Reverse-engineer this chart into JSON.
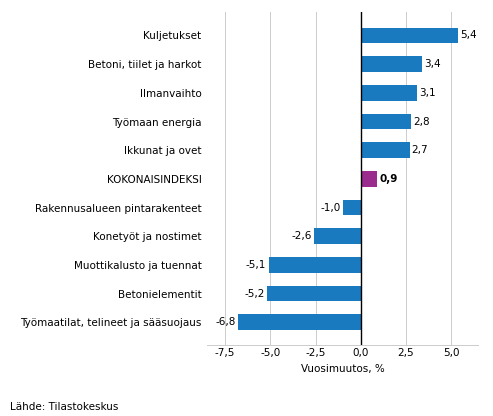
{
  "categories": [
    "Työmaatilat, telineet ja sääsuojaus",
    "Betonielementit",
    "Muottikalusto ja tuennat",
    "Konetyöt ja nostimet",
    "Rakennusalueen pintarakenteet",
    "KOKONAISINDEKSI",
    "Ikkunat ja ovet",
    "Työmaan energia",
    "Ilmanvaihto",
    "Betoni, tiilet ja harkot",
    "Kuljetukset"
  ],
  "values": [
    -6.8,
    -5.2,
    -5.1,
    -2.6,
    -1.0,
    0.9,
    2.7,
    2.8,
    3.1,
    3.4,
    5.4
  ],
  "bar_colors": [
    "#1a7abf",
    "#1a7abf",
    "#1a7abf",
    "#1a7abf",
    "#1a7abf",
    "#9b2c8e",
    "#1a7abf",
    "#1a7abf",
    "#1a7abf",
    "#1a7abf",
    "#1a7abf"
  ],
  "xlabel": "Vuosimuutos, %",
  "xlim": [
    -8.5,
    6.5
  ],
  "xticks": [
    -7.5,
    -5.0,
    -2.5,
    0.0,
    2.5,
    5.0
  ],
  "xtick_labels": [
    "-7,5",
    "-5,0",
    "-2,5",
    "0,0",
    "2,5",
    "5,0"
  ],
  "source_text": "Lähde: Tilastokeskus",
  "bar_height": 0.55,
  "background_color": "#ffffff",
  "grid_color": "#cccccc",
  "label_fontsize": 7.5,
  "axis_fontsize": 7.5,
  "value_label_bold_index": 5,
  "value_label_fontsize": 7.5
}
